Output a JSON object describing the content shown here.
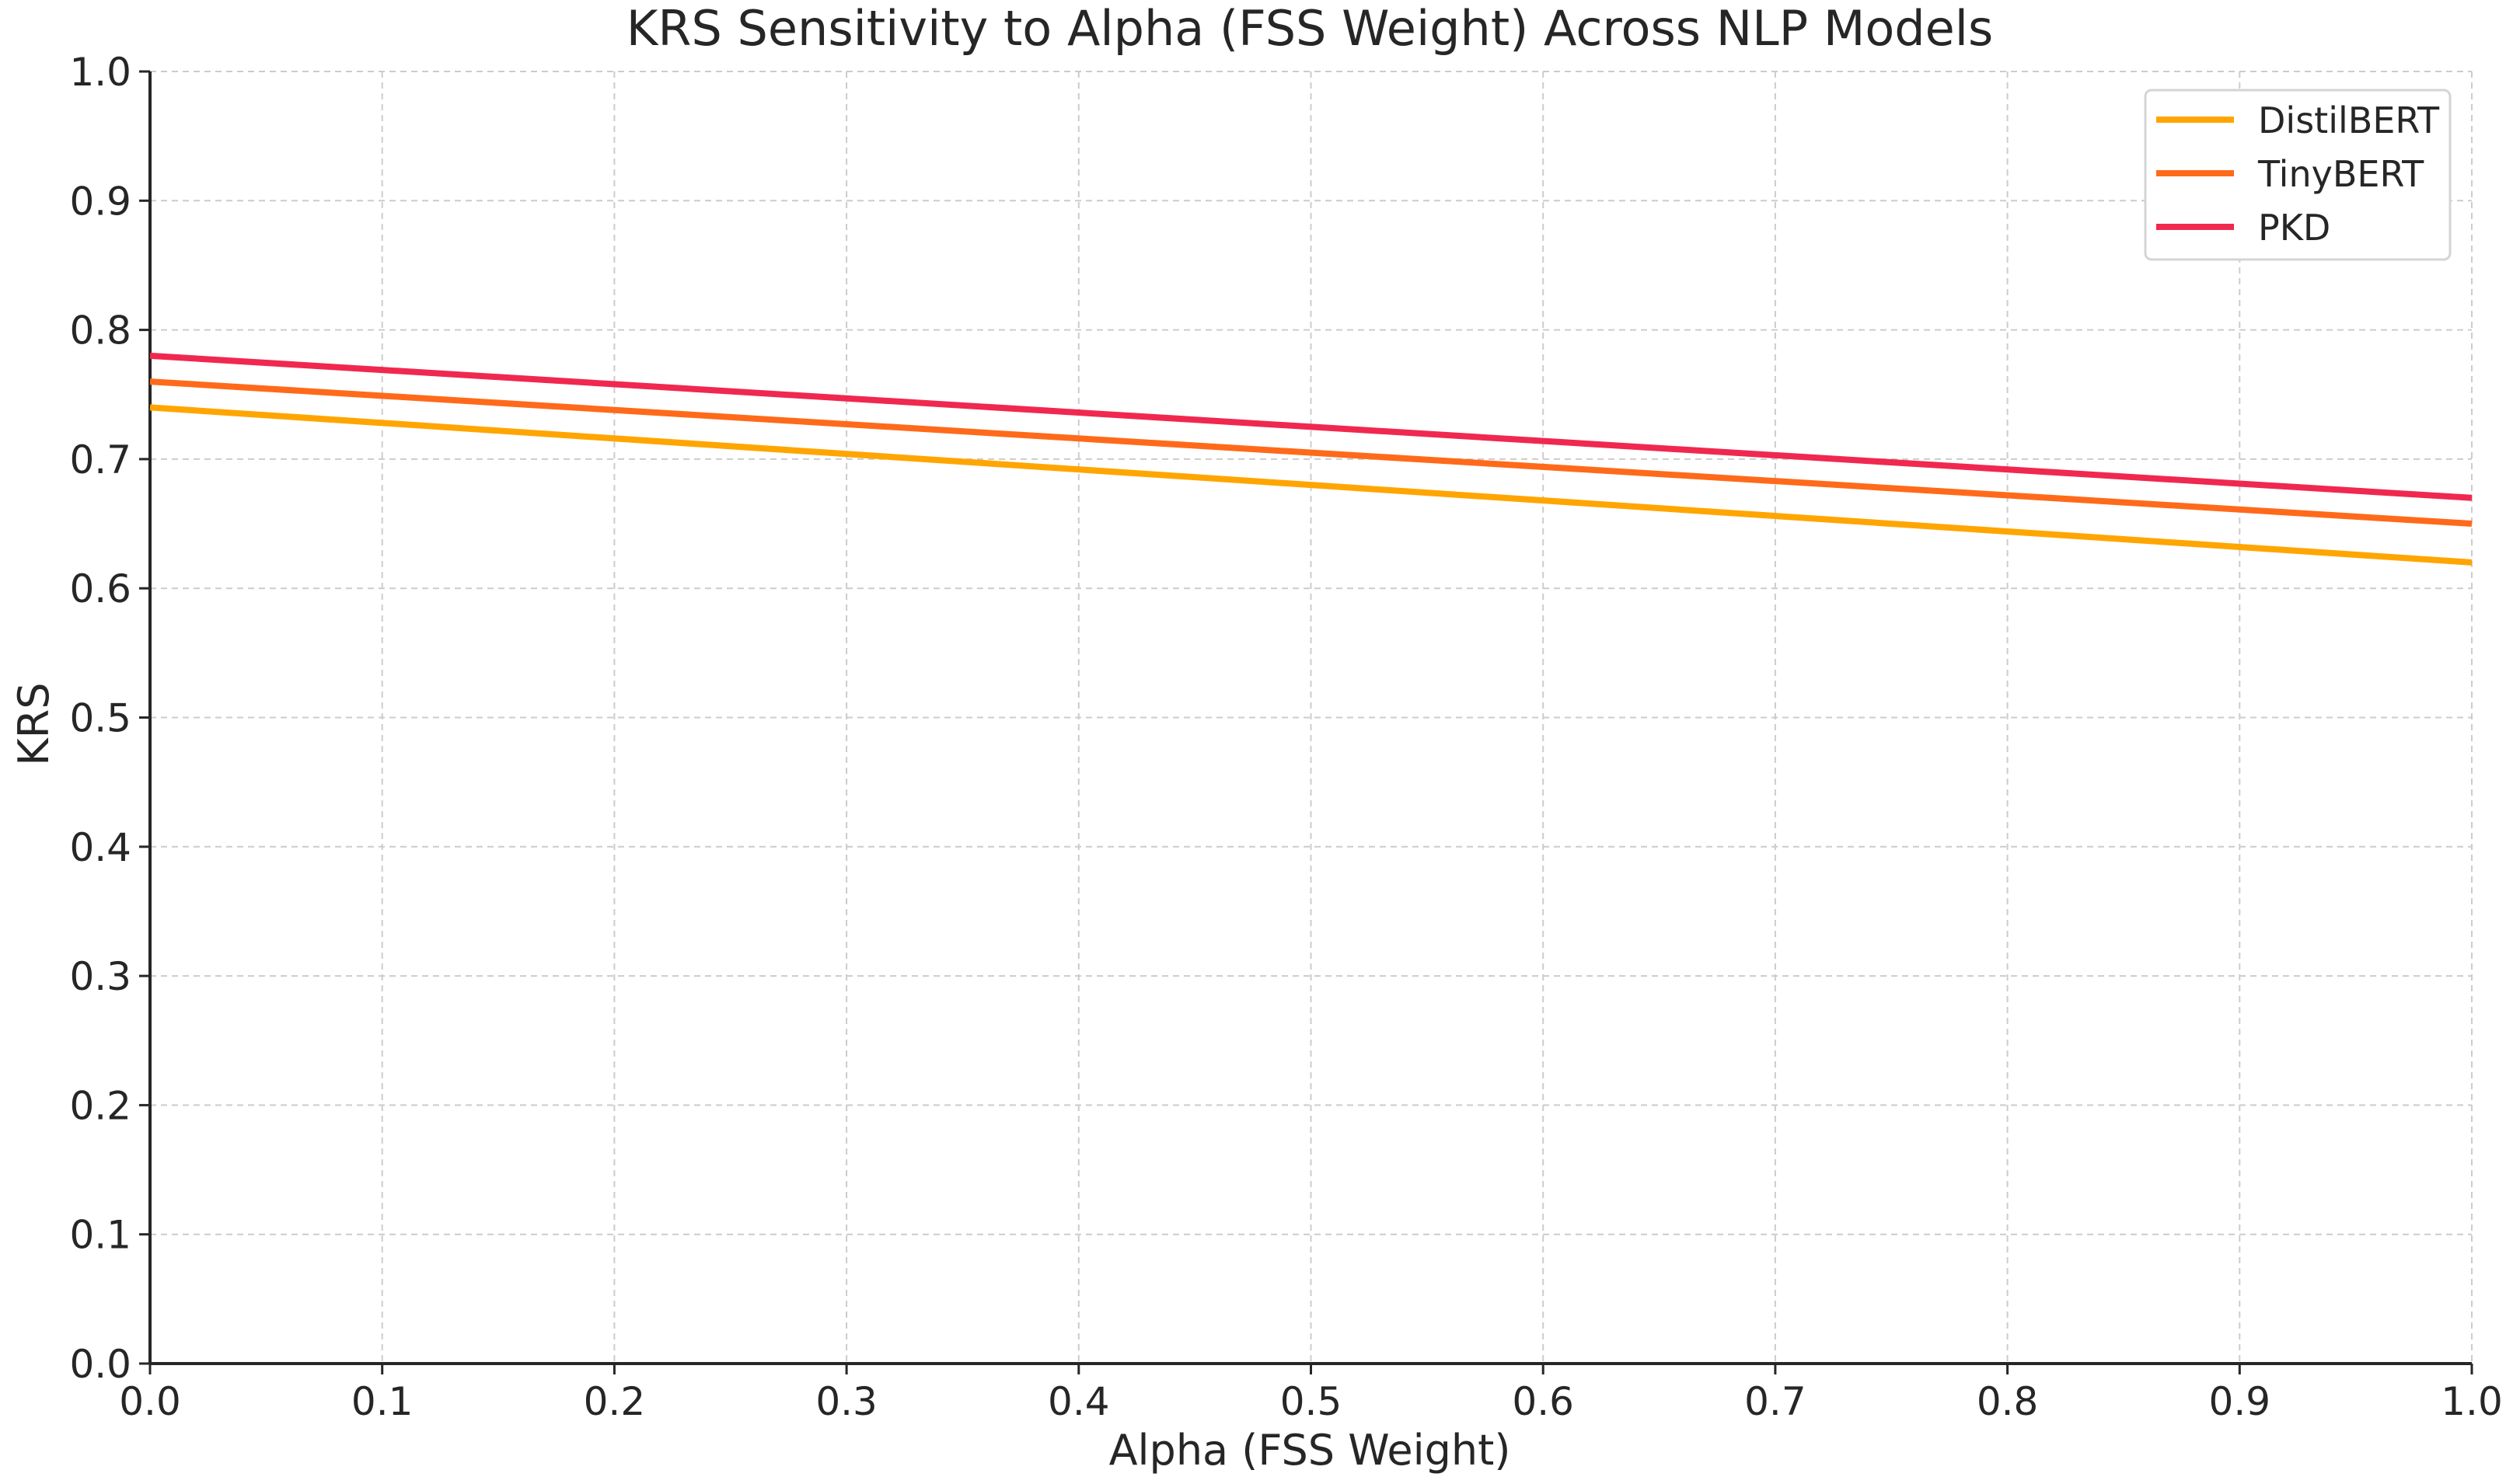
{
  "chart_data": {
    "type": "line",
    "title": "KRS Sensitivity to Alpha (FSS Weight) Across NLP Models",
    "xlabel": "Alpha (FSS Weight)",
    "ylabel": "KRS",
    "xlim": [
      0.0,
      1.0
    ],
    "ylim": [
      0.0,
      1.0
    ],
    "xticks": [
      "0.0",
      "0.1",
      "0.2",
      "0.3",
      "0.4",
      "0.5",
      "0.6",
      "0.7",
      "0.8",
      "0.9",
      "1.0"
    ],
    "yticks": [
      "0.0",
      "0.1",
      "0.2",
      "0.3",
      "0.4",
      "0.5",
      "0.6",
      "0.7",
      "0.8",
      "0.9",
      "1.0"
    ],
    "grid": true,
    "legend_position": "top-right",
    "x": [
      0.0,
      1.0
    ],
    "series": [
      {
        "name": "DistilBERT",
        "color": "#FFA500",
        "values": [
          0.74,
          0.62
        ]
      },
      {
        "name": "TinyBERT",
        "color": "#FF6A1A",
        "values": [
          0.76,
          0.65
        ]
      },
      {
        "name": "PKD",
        "color": "#F0284F",
        "values": [
          0.78,
          0.67
        ]
      }
    ]
  }
}
